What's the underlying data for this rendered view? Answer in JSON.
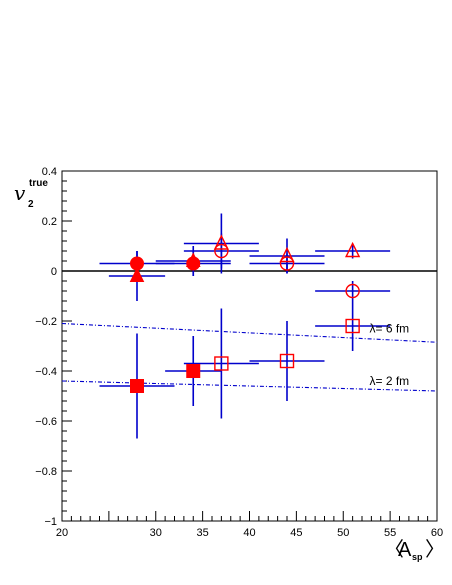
{
  "chart_data": {
    "type": "scatter",
    "title": "",
    "ylabel_main": "v",
    "ylabel_sub": "2",
    "ylabel_sup": "true",
    "xlabel_main": "A",
    "xlabel_sub": "sp",
    "xlim": [
      20,
      60
    ],
    "ylim": [
      -1,
      0.4
    ],
    "x_ticks": [
      20,
      25,
      30,
      35,
      40,
      45,
      50,
      55,
      60
    ],
    "x_tick_labels": [
      "20",
      "",
      "30",
      "35",
      "40",
      "45",
      "50",
      "55",
      "60"
    ],
    "y_ticks": [
      -1,
      -0.8,
      -0.6,
      -0.4,
      -0.2,
      0,
      0.2,
      0.4
    ],
    "y_tick_labels": [
      "−1",
      "−0.8",
      "−0.6",
      "−0.4",
      "−0.2",
      "0",
      "0.2",
      "0.4"
    ],
    "zero_line": true,
    "grid": false,
    "colors": {
      "marker": "#ff0000",
      "error_bar": "#0000cc",
      "axis": "#000000",
      "curve": "#0000cc"
    },
    "series": [
      {
        "marker": "filled-circle",
        "points": [
          {
            "x": 28,
            "y": 0.03,
            "xerr": 4,
            "yerr": 0.05
          },
          {
            "x": 34,
            "y": 0.03,
            "xerr": 4,
            "yerr": 0.05
          }
        ]
      },
      {
        "marker": "filled-triangle",
        "points": [
          {
            "x": 28,
            "y": -0.02,
            "xerr": 3,
            "yerr": 0.1
          },
          {
            "x": 34,
            "y": 0.04,
            "xerr": 4,
            "yerr": 0.06
          }
        ]
      },
      {
        "marker": "open-circle",
        "points": [
          {
            "x": 37,
            "y": 0.08,
            "xerr": 4,
            "yerr": 0.07
          },
          {
            "x": 44,
            "y": 0.03,
            "xerr": 4,
            "yerr": 0.04
          },
          {
            "x": 51,
            "y": -0.08,
            "xerr": 4,
            "yerr": 0.04
          }
        ]
      },
      {
        "marker": "open-triangle",
        "points": [
          {
            "x": 37,
            "y": 0.11,
            "xerr": 4,
            "yerr": 0.12
          },
          {
            "x": 44,
            "y": 0.06,
            "xerr": 4,
            "yerr": 0.07
          },
          {
            "x": 51,
            "y": 0.08,
            "xerr": 4,
            "yerr": 0.03
          }
        ]
      },
      {
        "marker": "filled-square",
        "points": [
          {
            "x": 28,
            "y": -0.46,
            "xerr": 4,
            "yerr": 0.21
          },
          {
            "x": 34,
            "y": -0.4,
            "xerr": 3,
            "yerr": 0.14
          }
        ]
      },
      {
        "marker": "open-square",
        "points": [
          {
            "x": 37,
            "y": -0.37,
            "xerr": 4,
            "yerr": 0.22
          },
          {
            "x": 44,
            "y": -0.36,
            "xerr": 4,
            "yerr": 0.16
          },
          {
            "x": 51,
            "y": -0.22,
            "xerr": 4,
            "yerr": 0.1
          }
        ]
      }
    ],
    "curves": [
      {
        "label": "λ= 6 fm",
        "points": [
          [
            20,
            -0.21
          ],
          [
            60,
            -0.285
          ]
        ]
      },
      {
        "label": "λ= 2 fm",
        "points": [
          [
            20,
            -0.44
          ],
          [
            60,
            -0.48
          ]
        ]
      }
    ]
  }
}
